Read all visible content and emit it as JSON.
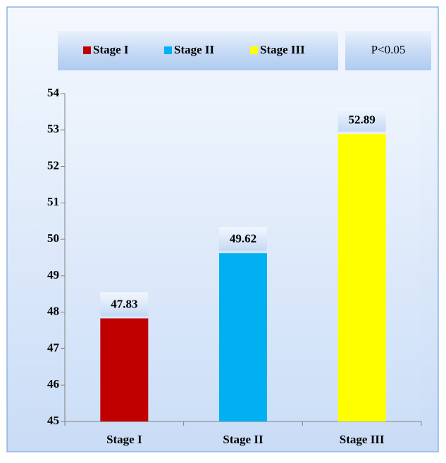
{
  "chart_data": {
    "type": "bar",
    "categories": [
      "Stage I",
      "Stage II",
      "Stage III"
    ],
    "values": [
      47.83,
      49.62,
      52.89
    ],
    "colors": [
      "#c00000",
      "#00b0f0",
      "#ffff00"
    ],
    "ylim": [
      45,
      54
    ],
    "yticks": [
      45,
      46,
      47,
      48,
      49,
      50,
      51,
      52,
      53,
      54
    ],
    "annotation": "P<0.05",
    "legend": "top"
  }
}
